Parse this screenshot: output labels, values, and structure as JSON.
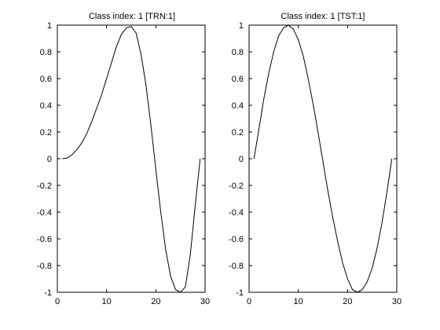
{
  "chart_data": [
    {
      "type": "line",
      "title": "Class index: 1 [TRN:1]",
      "xlabel": "",
      "ylabel": "",
      "xlim": [
        0,
        30
      ],
      "ylim": [
        -1,
        1
      ],
      "grid": false,
      "xticks": [
        0,
        10,
        20,
        30
      ],
      "yticks": [
        -1,
        -0.8,
        -0.6,
        -0.4,
        -0.2,
        0,
        0.2,
        0.4,
        0.6,
        0.8,
        1
      ],
      "series": [
        {
          "color": "#000000",
          "x": [
            1,
            2,
            3,
            4,
            5,
            6,
            7,
            8,
            9,
            10,
            11,
            12,
            13,
            14,
            15,
            16,
            17,
            18,
            19,
            20,
            21,
            22,
            23,
            24,
            25,
            26,
            27,
            28,
            29
          ],
          "y": [
            0,
            0.005,
            0.03,
            0.07,
            0.12,
            0.19,
            0.28,
            0.38,
            0.48,
            0.6,
            0.72,
            0.84,
            0.93,
            0.98,
            0.99,
            0.94,
            0.78,
            0.55,
            0.25,
            -0.08,
            -0.4,
            -0.68,
            -0.88,
            -0.98,
            -1.0,
            -0.96,
            -0.72,
            -0.35,
            0.0
          ]
        }
      ]
    },
    {
      "type": "line",
      "title": "Class index: 1 [TST:1]",
      "xlabel": "",
      "ylabel": "",
      "xlim": [
        0,
        30
      ],
      "ylim": [
        -1,
        1
      ],
      "grid": false,
      "xticks": [
        0,
        10,
        20,
        30
      ],
      "yticks": [
        -1,
        -0.8,
        -0.6,
        -0.4,
        -0.2,
        0,
        0.2,
        0.4,
        0.6,
        0.8,
        1
      ],
      "series": [
        {
          "color": "#000000",
          "x": [
            1,
            2,
            3,
            4,
            5,
            6,
            7,
            8,
            9,
            10,
            11,
            12,
            13,
            14,
            15,
            16,
            17,
            18,
            19,
            20,
            21,
            22,
            23,
            24,
            25,
            26,
            27,
            28,
            29
          ],
          "y": [
            0,
            0.22,
            0.45,
            0.64,
            0.8,
            0.92,
            0.98,
            1.0,
            0.97,
            0.89,
            0.77,
            0.6,
            0.41,
            0.2,
            -0.02,
            -0.24,
            -0.44,
            -0.62,
            -0.78,
            -0.9,
            -0.98,
            -1.0,
            -0.98,
            -0.92,
            -0.82,
            -0.67,
            -0.48,
            -0.25,
            0.0
          ]
        }
      ]
    }
  ]
}
